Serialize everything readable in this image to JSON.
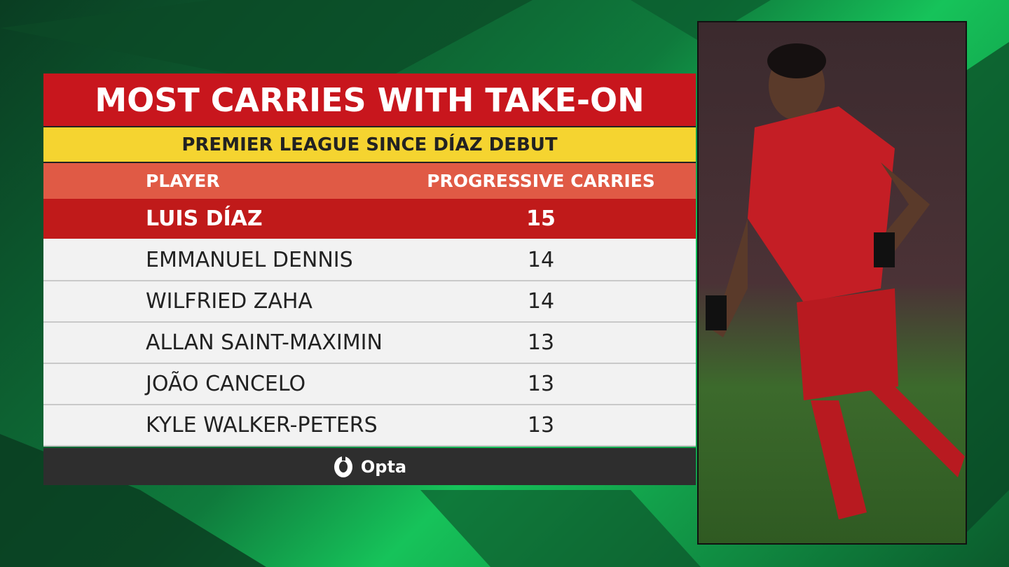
{
  "header": {
    "title": "MOST CARRIES WITH TAKE-ON",
    "subtitle": "PREMIER LEAGUE SINCE DÍAZ DEBUT"
  },
  "table": {
    "columns": [
      "PLAYER",
      "PROGRESSIVE CARRIES"
    ],
    "rows": [
      [
        "LUIS DÍAZ",
        15
      ],
      [
        "EMMANUEL DENNIS",
        14
      ],
      [
        "WILFRIED ZAHA",
        14
      ],
      [
        "ALLAN SAINT-MAXIMIN",
        13
      ],
      [
        "JOÃO CANCELO",
        13
      ],
      [
        "KYLE WALKER-PETERS",
        13
      ]
    ]
  },
  "footer": {
    "brand": "Opta"
  }
}
